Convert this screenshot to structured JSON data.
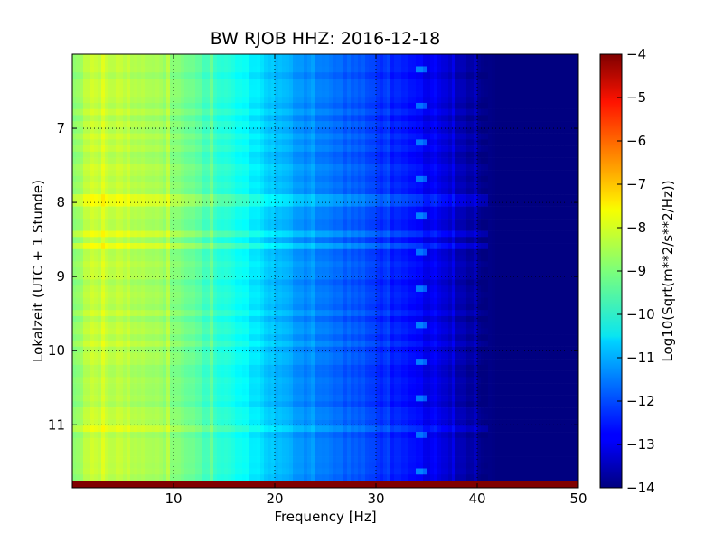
{
  "chart_data": {
    "type": "heatmap",
    "title": "BW RJOB HHZ: 2016-12-18",
    "xlabel": "Frequency [Hz]",
    "ylabel": "Lokalzeit (UTC + 1 Stunde)",
    "xlim": [
      0,
      50
    ],
    "ylim": [
      11.85,
      6.0
    ],
    "y_inverted": true,
    "xticks": [
      10,
      20,
      30,
      40,
      50
    ],
    "yticks": [
      7,
      8,
      9,
      10,
      11
    ],
    "grid": true,
    "grid_lines_x": [
      10,
      20,
      30,
      40
    ],
    "grid_lines_y": [
      7,
      8,
      9,
      10,
      11
    ],
    "colormap": "jet",
    "colorbar": {
      "label": "Log10(Sqrt(m**2/s**2/Hz))",
      "min": -14,
      "max": -4,
      "ticks": [
        -4,
        -5,
        -6,
        -7,
        -8,
        -9,
        -10,
        -11,
        -12,
        -13,
        -14
      ]
    },
    "spectrum_profile": {
      "frequency_hz": [
        0,
        2,
        5,
        8,
        10,
        12,
        15,
        18,
        20,
        22,
        25,
        28,
        30,
        32,
        35,
        38,
        40,
        42,
        45,
        50
      ],
      "log_amplitude": [
        -8.9,
        -8.3,
        -8.4,
        -8.6,
        -8.9,
        -9.3,
        -9.9,
        -10.4,
        -10.9,
        -11.2,
        -11.6,
        -11.9,
        -12.2,
        -12.5,
        -12.9,
        -13.4,
        -13.8,
        -14.0,
        -14.0,
        -14.0
      ]
    },
    "features": {
      "last_row_value": -4,
      "cutoff_hz": 41,
      "repeating_signal_near_hz": 34.5
    }
  }
}
